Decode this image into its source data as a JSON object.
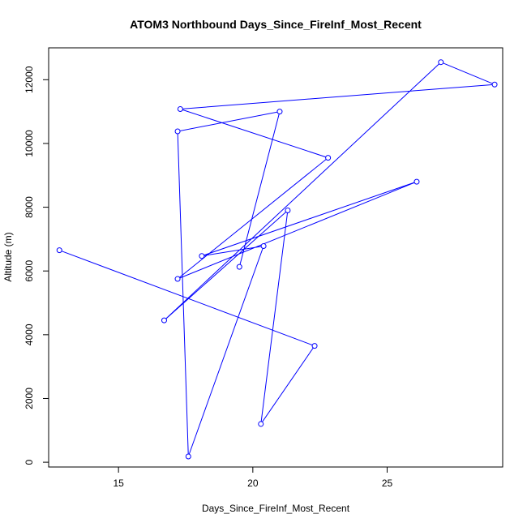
{
  "chart_data": {
    "type": "line",
    "markers": "open-circle",
    "title": "ATOM3 Northbound Days_Since_FireInf_Most_Recent",
    "xlabel": "Days_Since_FireInf_Most_Recent",
    "ylabel": "Altitude (m)",
    "xlim": [
      12.4,
      29.3
    ],
    "ylim": [
      -150,
      13000
    ],
    "xticks": [
      15,
      20,
      25
    ],
    "yticks": [
      0,
      2000,
      4000,
      6000,
      8000,
      10000,
      12000
    ],
    "grid": false,
    "legend": "none",
    "series": [
      {
        "color": "#0000ff",
        "points": [
          {
            "x": 12.8,
            "y": 6650
          },
          {
            "x": 22.3,
            "y": 3650
          },
          {
            "x": 20.3,
            "y": 1200
          },
          {
            "x": 21.3,
            "y": 7900
          },
          {
            "x": 16.7,
            "y": 4450
          },
          {
            "x": 27.0,
            "y": 12550
          },
          {
            "x": 29.0,
            "y": 11850
          },
          {
            "x": 17.3,
            "y": 11080
          },
          {
            "x": 22.8,
            "y": 9550
          },
          {
            "x": 17.2,
            "y": 5750
          },
          {
            "x": 26.1,
            "y": 8800
          },
          {
            "x": 18.1,
            "y": 6470
          },
          {
            "x": 20.4,
            "y": 6780
          },
          {
            "x": 17.6,
            "y": 180
          },
          {
            "x": 17.2,
            "y": 10380
          },
          {
            "x": 21.0,
            "y": 11000
          },
          {
            "x": 19.5,
            "y": 6130
          }
        ]
      }
    ]
  }
}
